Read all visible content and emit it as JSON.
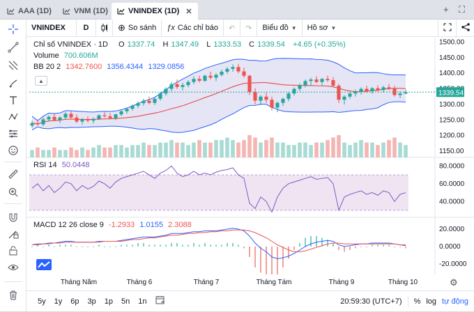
{
  "tabs": [
    {
      "label": "AAA (1D)",
      "active": false
    },
    {
      "label": "VNM (1D)",
      "active": false
    },
    {
      "label": "VNINDEX (1D)",
      "active": true
    }
  ],
  "toolbar": {
    "symbol": "VNINDEX",
    "interval": "D",
    "compare": "So sánh",
    "indicators": "Các chỉ báo",
    "chart_type": "Biểu đồ",
    "profile": "Hồ sơ"
  },
  "legend": {
    "title": "Chỉ số VNINDEX · 1D",
    "o_label": "O",
    "o_value": "1337.74",
    "h_label": "H",
    "h_value": "1347.49",
    "l_label": "L",
    "l_value": "1333.53",
    "c_label": "C",
    "c_value": "1339.54",
    "change": "+4.65 (+0.35%)",
    "volume_label": "Volume",
    "volume_value": "700.606M",
    "bb_label": "BB 20 2",
    "bb_basis": "1342.7600",
    "bb_upper": "1356.4344",
    "bb_lower": "1329.0856",
    "rsi_label": "RSI 14",
    "rsi_value": "50.0448",
    "macd_label": "MACD 12 26 close 9",
    "macd_hist": "-1.2933",
    "macd_macd": "1.0155",
    "macd_signal": "2.3088"
  },
  "price_axis": [
    "1500.00",
    "1450.00",
    "1400.00",
    "1350.00",
    "1300.00",
    "1250.00",
    "1200.00",
    "1150.00"
  ],
  "last_price": "1339.54",
  "rsi_axis": [
    "80.0000",
    "60.0000",
    "40.0000"
  ],
  "macd_axis": [
    "20.0000",
    "0.0000",
    "-20.0000"
  ],
  "time_axis": [
    "Tháng Năm",
    "Tháng 6",
    "Tháng 7",
    "Tháng Tám",
    "Tháng 9",
    "Tháng 10"
  ],
  "timeframes": [
    "5y",
    "1y",
    "6p",
    "3p",
    "1p",
    "5n",
    "1n"
  ],
  "bottom": {
    "clock": "20:59:30 (UTC+7)",
    "percent": "%",
    "log": "log",
    "auto": "tự động"
  },
  "colors": {
    "up": "#26a69a",
    "down": "#ef5350",
    "bb_fill": "#d6d4ee",
    "bb_line": "#2962ff",
    "bb_basis": "#e53935",
    "rsi_line": "#7e57c2",
    "rsi_fill": "#f1e4f2",
    "accent": "#2962ff"
  },
  "chart_data": {
    "type": "candlestick",
    "price_range": [
      1130,
      1510
    ],
    "candles": [
      [
        1232,
        1248,
        1225,
        1240
      ],
      [
        1240,
        1252,
        1232,
        1236
      ],
      [
        1236,
        1258,
        1230,
        1252
      ],
      [
        1252,
        1265,
        1245,
        1260
      ],
      [
        1260,
        1270,
        1248,
        1250
      ],
      [
        1250,
        1262,
        1240,
        1258
      ],
      [
        1258,
        1275,
        1252,
        1270
      ],
      [
        1270,
        1278,
        1255,
        1258
      ],
      [
        1258,
        1268,
        1240,
        1245
      ],
      [
        1245,
        1256,
        1235,
        1252
      ],
      [
        1252,
        1262,
        1242,
        1248
      ],
      [
        1248,
        1258,
        1238,
        1254
      ],
      [
        1254,
        1268,
        1250,
        1265
      ],
      [
        1265,
        1275,
        1258,
        1262
      ],
      [
        1262,
        1272,
        1252,
        1256
      ],
      [
        1256,
        1270,
        1250,
        1268
      ],
      [
        1268,
        1282,
        1262,
        1278
      ],
      [
        1278,
        1290,
        1270,
        1286
      ],
      [
        1286,
        1300,
        1280,
        1296
      ],
      [
        1296,
        1310,
        1288,
        1304
      ],
      [
        1304,
        1318,
        1296,
        1312
      ],
      [
        1312,
        1325,
        1300,
        1305
      ],
      [
        1305,
        1322,
        1298,
        1318
      ],
      [
        1318,
        1340,
        1312,
        1335
      ],
      [
        1335,
        1355,
        1328,
        1350
      ],
      [
        1350,
        1372,
        1342,
        1365
      ],
      [
        1365,
        1380,
        1350,
        1356
      ],
      [
        1356,
        1370,
        1345,
        1362
      ],
      [
        1362,
        1378,
        1355,
        1372
      ],
      [
        1372,
        1390,
        1365,
        1382
      ],
      [
        1382,
        1392,
        1370,
        1376
      ],
      [
        1376,
        1396,
        1372,
        1392
      ],
      [
        1392,
        1405,
        1380,
        1386
      ],
      [
        1386,
        1400,
        1375,
        1395
      ],
      [
        1395,
        1412,
        1390,
        1405
      ],
      [
        1405,
        1420,
        1398,
        1414
      ],
      [
        1414,
        1428,
        1405,
        1420
      ],
      [
        1420,
        1430,
        1400,
        1406
      ],
      [
        1406,
        1418,
        1385,
        1392
      ],
      [
        1392,
        1395,
        1330,
        1340
      ],
      [
        1340,
        1352,
        1300,
        1312
      ],
      [
        1312,
        1330,
        1298,
        1325
      ],
      [
        1325,
        1338,
        1305,
        1315
      ],
      [
        1315,
        1325,
        1280,
        1290
      ],
      [
        1290,
        1310,
        1275,
        1305
      ],
      [
        1305,
        1322,
        1295,
        1318
      ],
      [
        1318,
        1340,
        1310,
        1335
      ],
      [
        1335,
        1355,
        1328,
        1350
      ],
      [
        1350,
        1368,
        1342,
        1362
      ],
      [
        1362,
        1380,
        1355,
        1375
      ],
      [
        1375,
        1386,
        1360,
        1380
      ],
      [
        1380,
        1390,
        1368,
        1372
      ],
      [
        1372,
        1385,
        1362,
        1382
      ],
      [
        1382,
        1392,
        1372,
        1378
      ],
      [
        1378,
        1388,
        1355,
        1360
      ],
      [
        1360,
        1366,
        1305,
        1315
      ],
      [
        1315,
        1330,
        1300,
        1325
      ],
      [
        1325,
        1340,
        1318,
        1335
      ],
      [
        1335,
        1348,
        1325,
        1340
      ],
      [
        1340,
        1355,
        1332,
        1350
      ],
      [
        1350,
        1360,
        1338,
        1342
      ],
      [
        1342,
        1356,
        1334,
        1352
      ],
      [
        1352,
        1362,
        1340,
        1346
      ],
      [
        1346,
        1360,
        1338,
        1355
      ],
      [
        1355,
        1366,
        1345,
        1350
      ],
      [
        1350,
        1360,
        1325,
        1330
      ],
      [
        1330,
        1342,
        1320,
        1335
      ],
      [
        1335,
        1347,
        1333,
        1339
      ]
    ],
    "rsi": [
      55,
      60,
      52,
      58,
      50,
      55,
      62,
      60,
      52,
      58,
      54,
      57,
      63,
      60,
      55,
      62,
      66,
      68,
      70,
      72,
      74,
      70,
      66,
      72,
      75,
      80,
      72,
      68,
      70,
      74,
      70,
      72,
      70,
      73,
      75,
      76,
      78,
      70,
      66,
      38,
      32,
      45,
      40,
      28,
      45,
      55,
      60,
      62,
      64,
      66,
      68,
      65,
      66,
      67,
      60,
      30,
      45,
      48,
      50,
      52,
      48,
      50,
      47,
      52,
      50,
      40,
      48,
      50
    ],
    "macd": [
      2,
      3,
      3,
      4,
      4,
      5,
      6,
      6,
      5,
      5,
      5,
      5,
      6,
      6,
      6,
      6,
      7,
      8,
      9,
      10,
      11,
      11,
      11,
      12,
      13,
      15,
      15,
      15,
      16,
      17,
      17,
      18,
      18,
      18,
      19,
      20,
      21,
      20,
      18,
      12,
      4,
      -2,
      -6,
      -12,
      -14,
      -13,
      -11,
      -8,
      -4,
      0,
      3,
      5,
      6,
      7,
      6,
      2,
      0,
      1,
      2,
      3,
      3,
      4,
      4,
      4,
      4,
      3,
      2,
      1
    ],
    "signal": [
      2,
      2,
      3,
      3,
      4,
      4,
      5,
      5,
      5,
      5,
      5,
      5,
      5,
      6,
      6,
      6,
      6,
      7,
      8,
      8,
      9,
      10,
      10,
      11,
      12,
      13,
      13,
      14,
      15,
      15,
      16,
      16,
      17,
      17,
      18,
      18,
      19,
      19,
      19,
      18,
      16,
      13,
      10,
      6,
      2,
      -1,
      -4,
      -6,
      -6,
      -5,
      -3,
      -1,
      1,
      3,
      4,
      4,
      3,
      3,
      3,
      3,
      3,
      3,
      3,
      3,
      3,
      3,
      2,
      2
    ],
    "volume": [
      3,
      4,
      3,
      3,
      4,
      3,
      3,
      4,
      3,
      4,
      3,
      4,
      5,
      4,
      4,
      5,
      5,
      4,
      5,
      5,
      6,
      5,
      5,
      6,
      6,
      7,
      6,
      6,
      5,
      6,
      7,
      6,
      6,
      7,
      7,
      8,
      7,
      6,
      7,
      9,
      8,
      6,
      7,
      8,
      6,
      6,
      5,
      5,
      6,
      6,
      5,
      6,
      6,
      7,
      8,
      9,
      6,
      5,
      6,
      7,
      6,
      6,
      5,
      6,
      7,
      8,
      6,
      5
    ]
  }
}
